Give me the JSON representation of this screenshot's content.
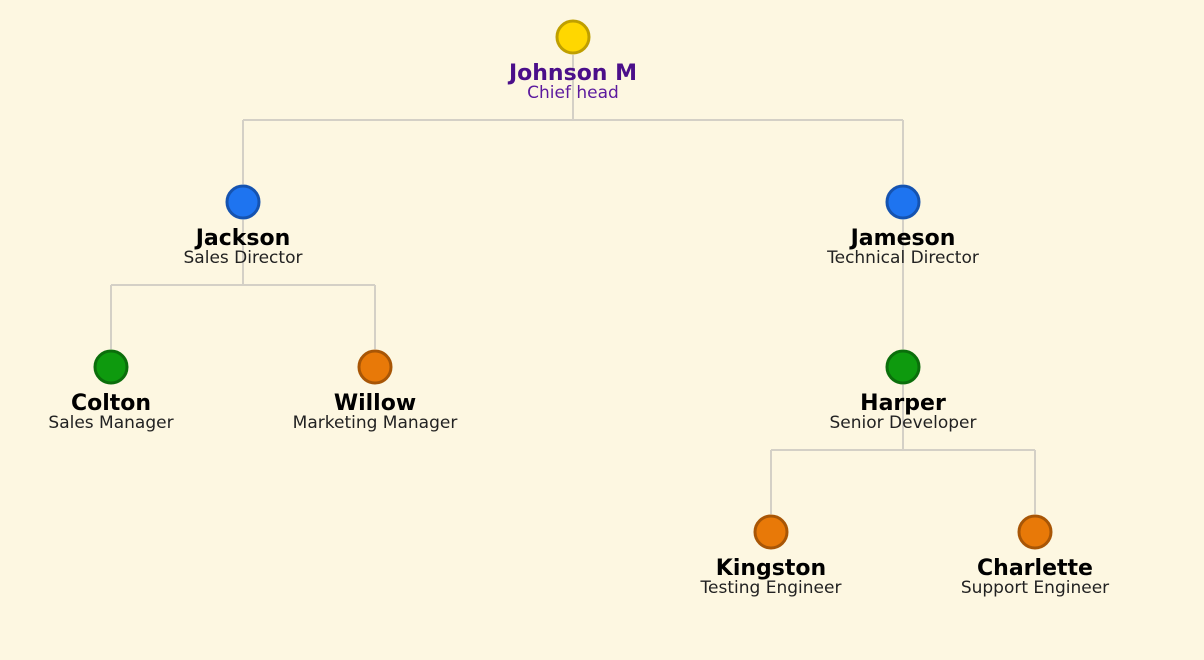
{
  "org_chart": {
    "root": {
      "name": "Johnson M",
      "title": "Chief head",
      "color": "#ffd700",
      "border": "#bf9f00",
      "text_color": "#4b0f8a",
      "children": [
        {
          "name": "Jackson",
          "title": "Sales Director",
          "color": "#1e74f0",
          "border": "#1553b0",
          "children": [
            {
              "name": "Colton",
              "title": "Sales Manager",
              "color": "#0e9a0e",
              "border": "#0b6e0b",
              "children": []
            },
            {
              "name": "Willow",
              "title": "Marketing Manager",
              "color": "#e87908",
              "border": "#a85606",
              "children": []
            }
          ]
        },
        {
          "name": "Jameson",
          "title": "Technical Director",
          "color": "#1e74f0",
          "border": "#1553b0",
          "children": [
            {
              "name": "Harper",
              "title": "Senior Developer",
              "color": "#0e9a0e",
              "border": "#0b6e0b",
              "children": [
                {
                  "name": "Kingston",
                  "title": "Testing Engineer",
                  "color": "#e87908",
                  "border": "#a85606",
                  "children": []
                },
                {
                  "name": "Charlette",
                  "title": "Support Engineer",
                  "color": "#e87908",
                  "border": "#a85606",
                  "children": []
                }
              ]
            }
          ]
        }
      ]
    }
  }
}
